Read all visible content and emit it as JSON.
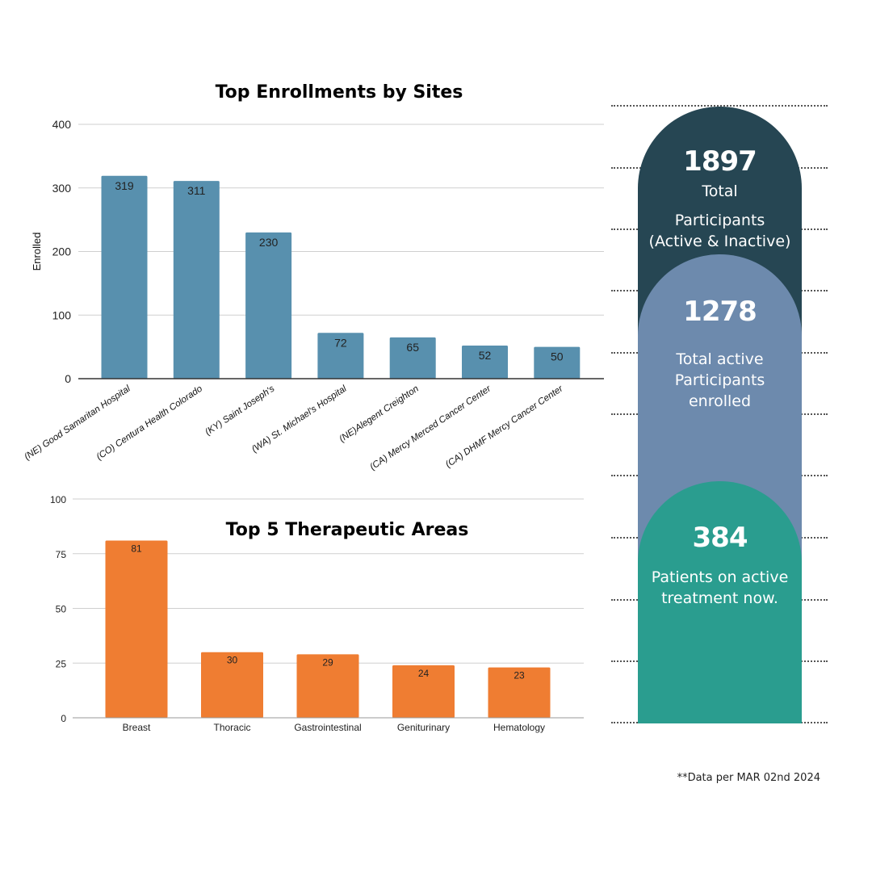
{
  "chart_data": [
    {
      "type": "bar",
      "title": "Top Enrollments  by Sites",
      "ylabel": "Enrolled",
      "xlabel": "",
      "ylim": [
        0,
        400
      ],
      "yticks": [
        0,
        100,
        200,
        300,
        400
      ],
      "color": "#5890ae",
      "grid": true,
      "categories": [
        "(NE) Good Samaritan Hospital",
        "(CO) Centura Health Colorado",
        "(KY) Saint Joseph's",
        "(WA) St. Michael's Hospital",
        "(NE)Alegent Creighton",
        "(CA) Mercy Merced Cancer Center",
        "(CA) DHMF Mercy Cancer Center"
      ],
      "values": [
        319,
        311,
        230,
        72,
        65,
        52,
        50
      ]
    },
    {
      "type": "bar",
      "title": "Top 5 Therapeutic Areas",
      "ylabel": "",
      "xlabel": "",
      "ylim": [
        0,
        100
      ],
      "yticks": [
        0,
        25,
        50,
        75,
        100
      ],
      "color": "#ef7d32",
      "grid": true,
      "categories": [
        "Breast",
        "Thoracic",
        "Gastrointestinal",
        "Geniturinary",
        "Hematology"
      ],
      "values": [
        81,
        30,
        29,
        24,
        23
      ]
    }
  ],
  "stats": {
    "total": {
      "value": "1897",
      "line1": "Total",
      "line2": "Participants",
      "line3": "(Active & Inactive)",
      "color": "#264653"
    },
    "active": {
      "value": "1278",
      "line1": "Total active",
      "line2": "Participants",
      "line3": "enrolled",
      "color": "#6d8aad"
    },
    "treatment": {
      "value": "384",
      "line1": "Patients on active",
      "line2": "treatment now.",
      "color": "#2a9d8f"
    }
  },
  "footnote": "**Data per MAR 02nd 2024"
}
